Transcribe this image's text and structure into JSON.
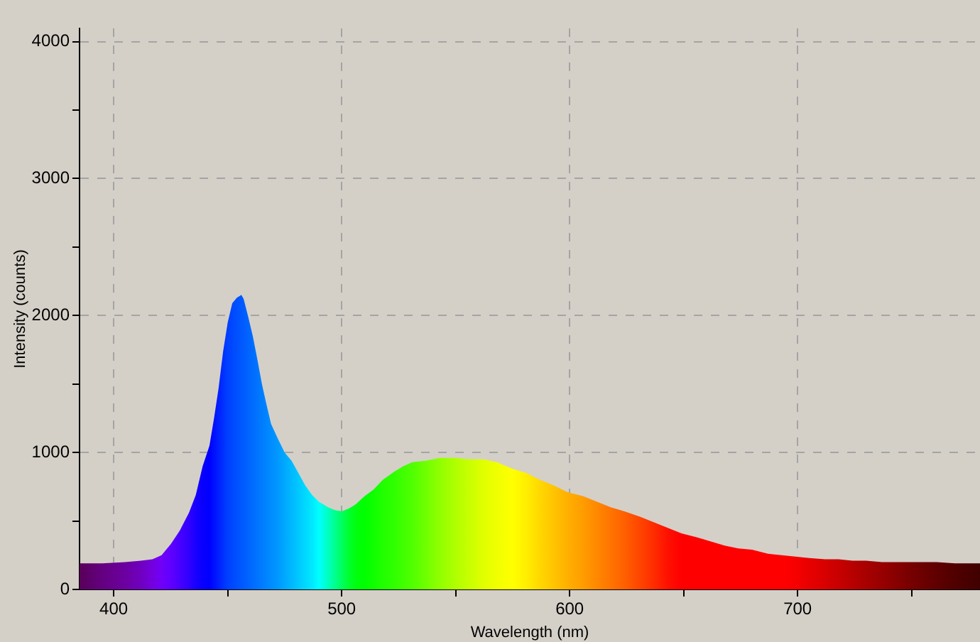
{
  "chart_data": {
    "type": "area",
    "xlabel": "Wavelength (nm)",
    "ylabel": "Intensity (counts)",
    "x": [
      385,
      395,
      405,
      412,
      417,
      421,
      425,
      429,
      433,
      436,
      439,
      442,
      444,
      446,
      448,
      450,
      452,
      454,
      456,
      457,
      459,
      461,
      463,
      465,
      467,
      469,
      472,
      475,
      478,
      481,
      484,
      487,
      490,
      494,
      497,
      500,
      503,
      506,
      510,
      514,
      518,
      523,
      527,
      531,
      537,
      543,
      550,
      556,
      562,
      568,
      575,
      581,
      587,
      593,
      599,
      606,
      612,
      618,
      624,
      631,
      637,
      643,
      649,
      656,
      662,
      668,
      674,
      680,
      687,
      693,
      699,
      705,
      712,
      718,
      724,
      730,
      737,
      743,
      749,
      761,
      769,
      780
    ],
    "values": [
      190,
      190,
      200,
      210,
      220,
      250,
      330,
      430,
      560,
      690,
      900,
      1050,
      1250,
      1470,
      1740,
      1950,
      2090,
      2130,
      2150,
      2120,
      1990,
      1850,
      1680,
      1500,
      1350,
      1210,
      1100,
      1000,
      940,
      850,
      760,
      690,
      640,
      600,
      580,
      570,
      590,
      620,
      680,
      730,
      800,
      860,
      900,
      930,
      940,
      960,
      960,
      950,
      950,
      930,
      880,
      850,
      800,
      760,
      710,
      680,
      640,
      600,
      570,
      530,
      490,
      450,
      410,
      380,
      350,
      320,
      300,
      290,
      260,
      250,
      240,
      230,
      220,
      220,
      210,
      210,
      200,
      200,
      200,
      200,
      190,
      190
    ],
    "colors": [
      "#580058",
      "#640080",
      "#6c00a0",
      "#7000c0",
      "#7400e0",
      "#7000f8",
      "#6000ff",
      "#4800ff",
      "#3000ff",
      "#1800ff",
      "#0800ff",
      "#0000ff",
      "#0010ff",
      "#0020ff",
      "#0030ff",
      "#0040ff",
      "#0048ff",
      "#0050ff",
      "#0058ff",
      "#005cff",
      "#0064ff",
      "#006cff",
      "#0074ff",
      "#007cff",
      "#0084ff",
      "#008cff",
      "#0098ff",
      "#00a8ff",
      "#00b8ff",
      "#00c8ff",
      "#00d8ff",
      "#00e8ff",
      "#00ffff",
      "#00ffc0",
      "#00ff90",
      "#00ff60",
      "#00ff30",
      "#00ff10",
      "#00ff00",
      "#10ff00",
      "#20ff00",
      "#30ff00",
      "#40ff00",
      "#50ff00",
      "#70ff00",
      "#90ff00",
      "#b0ff00",
      "#c8ff00",
      "#e0ff00",
      "#f0ff00",
      "#ffff00",
      "#ffee00",
      "#ffd800",
      "#ffc400",
      "#ffb000",
      "#ff9c00",
      "#ff8800",
      "#ff7400",
      "#ff6000",
      "#ff4400",
      "#ff2c00",
      "#ff1000",
      "#ff0000",
      "#ff0000",
      "#ff0000",
      "#ff0000",
      "#ff0000",
      "#ff0000",
      "#ff0000",
      "#ff0000",
      "#f80000",
      "#e80000",
      "#d80000",
      "#c80000",
      "#b80000",
      "#a80000",
      "#980000",
      "#880000",
      "#780000",
      "#600000",
      "#500000",
      "#400000"
    ],
    "xlim": [
      385,
      780
    ],
    "ylim": [
      0,
      4096
    ],
    "xticks": [
      400,
      {
        "value": 450,
        "label": null
      },
      500,
      {
        "value": 550,
        "label": null
      },
      600,
      {
        "value": 650,
        "label": null
      },
      700,
      {
        "value": 750,
        "label": null
      }
    ],
    "yticks": [
      0,
      {
        "value": 500,
        "label": null
      },
      1000,
      {
        "value": 1500,
        "label": null
      },
      2000,
      {
        "value": 2500,
        "label": null
      },
      3000,
      {
        "value": 3500,
        "label": null
      },
      4000
    ],
    "grid": true,
    "legend": false
  }
}
